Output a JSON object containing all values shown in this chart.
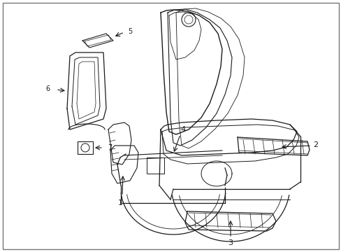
{
  "background_color": "#ffffff",
  "line_color": "#1a1a1a",
  "lw": 0.8,
  "fig_width": 4.89,
  "fig_height": 3.6,
  "dpi": 100,
  "border_color": "#888888"
}
